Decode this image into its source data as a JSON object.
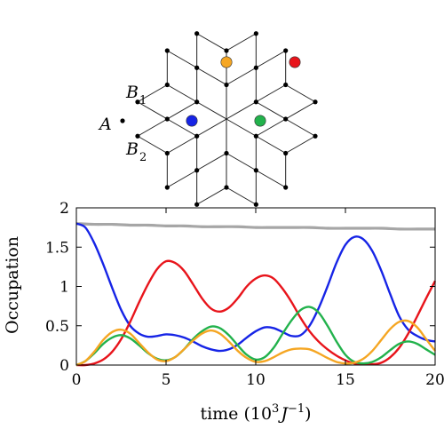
{
  "lattice": {
    "labels": {
      "A": "A",
      "B1": "B",
      "B1_sub": "1",
      "B2": "B",
      "B2_sub": "2"
    },
    "highlighted_sites": [
      {
        "name": "orange",
        "color": "#f5a623"
      },
      {
        "name": "red",
        "color": "#e8141b"
      },
      {
        "name": "blue",
        "color": "#1624e6"
      },
      {
        "name": "green",
        "color": "#22b24c"
      }
    ]
  },
  "chart_data": {
    "type": "line",
    "xlabel": "time (10³J⁻¹)",
    "xlabel_parts": {
      "prefix": "time (10",
      "sup1": "3",
      "J": "J",
      "sup2": "−1",
      "suffix": ")"
    },
    "ylabel": "Occupation",
    "xlim": [
      0,
      20
    ],
    "ylim": [
      0,
      2
    ],
    "xticks": [
      0,
      5,
      10,
      15,
      20
    ],
    "yticks": [
      0,
      0.5,
      1,
      1.5,
      2
    ],
    "ytick_labels": [
      "0",
      "0.5",
      "1",
      "1.5",
      "2"
    ],
    "grid": false,
    "legend": "none",
    "series": [
      {
        "color": "#a6a6a6",
        "x": [
          0,
          1,
          2,
          3,
          4,
          5,
          6,
          7,
          8,
          9,
          10,
          11,
          12,
          13,
          14,
          15,
          16,
          17,
          18,
          19,
          20
        ],
        "y": [
          1.8,
          1.79,
          1.79,
          1.78,
          1.78,
          1.77,
          1.77,
          1.76,
          1.76,
          1.76,
          1.75,
          1.75,
          1.75,
          1.75,
          1.74,
          1.74,
          1.74,
          1.74,
          1.73,
          1.73,
          1.73
        ]
      },
      {
        "color": "#1624e6",
        "x": [
          0,
          0.5,
          1,
          1.5,
          2,
          2.5,
          3,
          3.5,
          4,
          4.5,
          5,
          5.5,
          6,
          6.5,
          7,
          7.5,
          8,
          8.5,
          9,
          9.5,
          10,
          10.5,
          11,
          11.5,
          12,
          12.5,
          13,
          13.5,
          14,
          14.5,
          15,
          15.5,
          16,
          16.5,
          17,
          17.5,
          18,
          18.5,
          19,
          19.5,
          20
        ],
        "y": [
          1.8,
          1.75,
          1.55,
          1.28,
          0.98,
          0.7,
          0.5,
          0.4,
          0.36,
          0.37,
          0.39,
          0.38,
          0.35,
          0.3,
          0.24,
          0.2,
          0.18,
          0.2,
          0.26,
          0.35,
          0.43,
          0.48,
          0.47,
          0.42,
          0.37,
          0.38,
          0.5,
          0.72,
          1.0,
          1.3,
          1.53,
          1.63,
          1.6,
          1.45,
          1.2,
          0.9,
          0.62,
          0.45,
          0.37,
          0.32,
          0.3
        ]
      },
      {
        "color": "#e8141b",
        "x": [
          0,
          0.5,
          1,
          1.5,
          2,
          2.5,
          3,
          3.5,
          4,
          4.5,
          5,
          5.5,
          6,
          6.5,
          7,
          7.5,
          8,
          8.5,
          9,
          9.5,
          10,
          10.5,
          11,
          11.5,
          12,
          12.5,
          13,
          13.5,
          14,
          14.5,
          15,
          15.5,
          16,
          16.5,
          17,
          17.5,
          18,
          18.5,
          19,
          19.5,
          20
        ],
        "y": [
          0.0,
          0.0,
          0.02,
          0.07,
          0.17,
          0.33,
          0.55,
          0.8,
          1.03,
          1.22,
          1.32,
          1.3,
          1.2,
          1.03,
          0.85,
          0.72,
          0.68,
          0.73,
          0.85,
          1.0,
          1.1,
          1.14,
          1.1,
          0.97,
          0.8,
          0.6,
          0.43,
          0.3,
          0.2,
          0.12,
          0.06,
          0.02,
          0.01,
          0.01,
          0.03,
          0.1,
          0.22,
          0.4,
          0.62,
          0.85,
          1.07
        ]
      },
      {
        "color": "#22b24c",
        "x": [
          0,
          0.5,
          1,
          1.5,
          2,
          2.5,
          3,
          3.5,
          4,
          4.5,
          5,
          5.5,
          6,
          6.5,
          7,
          7.5,
          8,
          8.5,
          9,
          9.5,
          10,
          10.5,
          11,
          11.5,
          12,
          12.5,
          13,
          13.5,
          14,
          14.5,
          15,
          15.5,
          16,
          16.5,
          17,
          17.5,
          18,
          18.5,
          19,
          19.5,
          20
        ],
        "y": [
          0.0,
          0.05,
          0.15,
          0.27,
          0.35,
          0.38,
          0.34,
          0.25,
          0.15,
          0.08,
          0.06,
          0.1,
          0.2,
          0.33,
          0.43,
          0.49,
          0.47,
          0.38,
          0.25,
          0.13,
          0.07,
          0.1,
          0.22,
          0.4,
          0.57,
          0.7,
          0.74,
          0.67,
          0.5,
          0.3,
          0.13,
          0.04,
          0.02,
          0.04,
          0.1,
          0.19,
          0.27,
          0.3,
          0.27,
          0.2,
          0.13
        ]
      },
      {
        "color": "#f5a623",
        "x": [
          0,
          0.5,
          1,
          1.5,
          2,
          2.5,
          3,
          3.5,
          4,
          4.5,
          5,
          5.5,
          6,
          6.5,
          7,
          7.5,
          8,
          8.5,
          9,
          9.5,
          10,
          10.5,
          11,
          11.5,
          12,
          12.5,
          13,
          13.5,
          14,
          14.5,
          15,
          15.5,
          16,
          16.5,
          17,
          17.5,
          18,
          18.5,
          19,
          19.5,
          20
        ],
        "y": [
          0.0,
          0.05,
          0.17,
          0.32,
          0.42,
          0.45,
          0.4,
          0.28,
          0.16,
          0.07,
          0.05,
          0.1,
          0.2,
          0.31,
          0.4,
          0.44,
          0.4,
          0.3,
          0.18,
          0.09,
          0.04,
          0.05,
          0.1,
          0.16,
          0.2,
          0.21,
          0.2,
          0.15,
          0.09,
          0.04,
          0.02,
          0.03,
          0.08,
          0.18,
          0.32,
          0.46,
          0.55,
          0.56,
          0.48,
          0.33,
          0.18
        ]
      }
    ]
  }
}
